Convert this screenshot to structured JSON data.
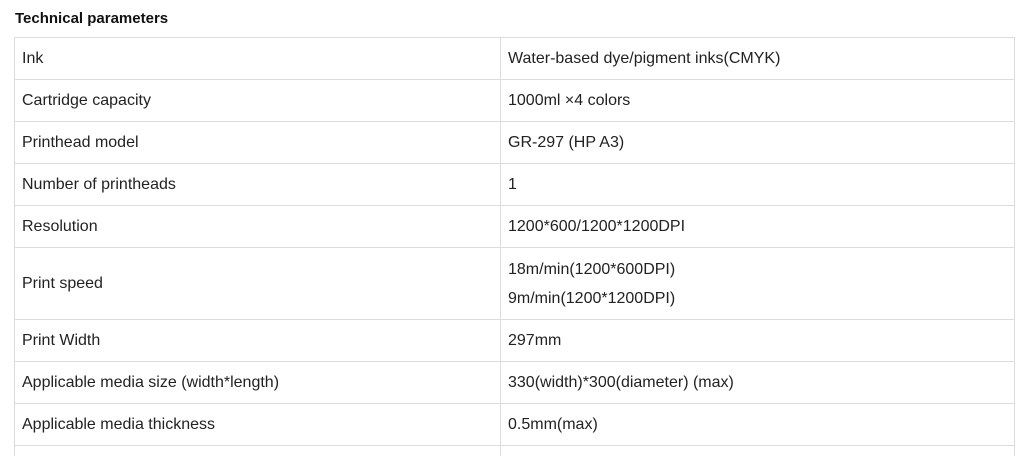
{
  "title": "Technical parameters",
  "rows": [
    {
      "param": "Ink",
      "value": [
        "Water-based dye/pigment inks(CMYK)"
      ]
    },
    {
      "param": "Cartridge capacity",
      "value": [
        "1000ml ×4 colors"
      ]
    },
    {
      "param": "Printhead model",
      "value": [
        "GR-297 (HP A3)"
      ]
    },
    {
      "param": "Number of printheads",
      "value": [
        "1"
      ]
    },
    {
      "param": "Resolution",
      "value": [
        "1200*600/1200*1200DPI"
      ]
    },
    {
      "param": "Print speed",
      "value": [
        "18m/min(1200*600DPI)",
        "9m/min(1200*1200DPI)"
      ]
    },
    {
      "param": "Print Width",
      "value": [
        "297mm"
      ]
    },
    {
      "param": "Applicable media size (width*length)",
      "value": [
        "330(width)*300(diameter) (max)"
      ]
    },
    {
      "param": "Applicable media thickness",
      "value": [
        "0.5mm(max)"
      ]
    }
  ]
}
